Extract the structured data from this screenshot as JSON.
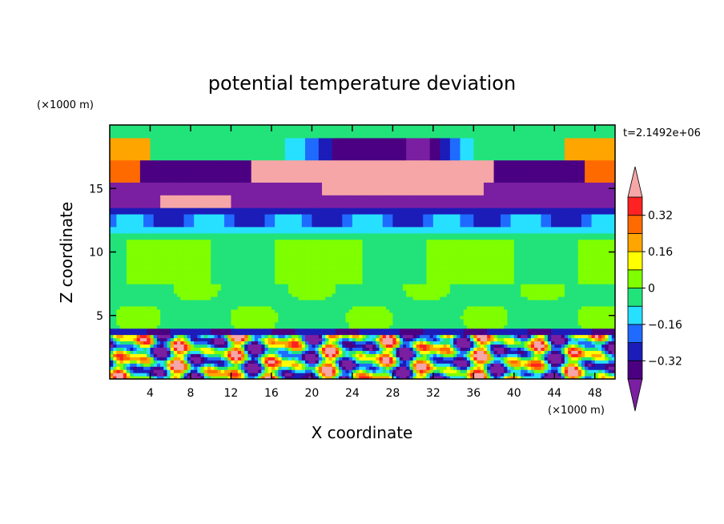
{
  "chart_data": {
    "type": "heatmap",
    "title": "potential temperature deviation",
    "xlabel": "X coordinate",
    "ylabel": "Z coordinate",
    "x_unit_label": "(×1000 m)",
    "y_unit_label": "(×1000 m)",
    "time_label": "t=2.1492e+06",
    "xlim": [
      0,
      50
    ],
    "ylim": [
      0,
      20
    ],
    "x_ticks": [
      4,
      8,
      12,
      16,
      20,
      24,
      28,
      32,
      36,
      40,
      44,
      48
    ],
    "y_ticks": [
      5,
      10,
      15
    ],
    "colorbar": {
      "levels": [
        -0.4,
        -0.32,
        -0.24,
        -0.16,
        -0.08,
        0,
        0.08,
        0.16,
        0.24,
        0.32,
        0.4
      ],
      "colors": [
        "#4b0082",
        "#1c1cb8",
        "#1f6bff",
        "#27e0ff",
        "#22e37a",
        "#7fff00",
        "#ffff00",
        "#ffa500",
        "#ff6a00",
        "#ff2222"
      ],
      "under_color": "#7a1fa2",
      "over_color": "#f6a6a6",
      "labels": [
        {
          "value": 0.32,
          "text": "0.32"
        },
        {
          "value": 0.16,
          "text": "0.16"
        },
        {
          "value": 0,
          "text": "0"
        },
        {
          "value": -0.16,
          "text": "−0.16"
        },
        {
          "value": -0.32,
          "text": "−0.32"
        }
      ]
    },
    "layers": [
      {
        "z": [
          0,
          3.5
        ],
        "value": -0.5,
        "description_color": "mixed"
      },
      {
        "z": [
          3.5,
          4.1
        ],
        "value": -0.3
      },
      {
        "z": [
          4.1,
          7.5
        ],
        "value": -0.04
      },
      {
        "z": [
          7.5,
          11.0
        ],
        "value": 0.04
      },
      {
        "z": [
          11.0,
          13.0
        ],
        "value": -0.12
      },
      {
        "z": [
          13.0,
          15.5
        ],
        "value": -0.42
      },
      {
        "z": [
          15.5,
          17.2
        ],
        "value": 0.5
      },
      {
        "z": [
          17.2,
          20
        ],
        "value": -0.04
      }
    ]
  }
}
